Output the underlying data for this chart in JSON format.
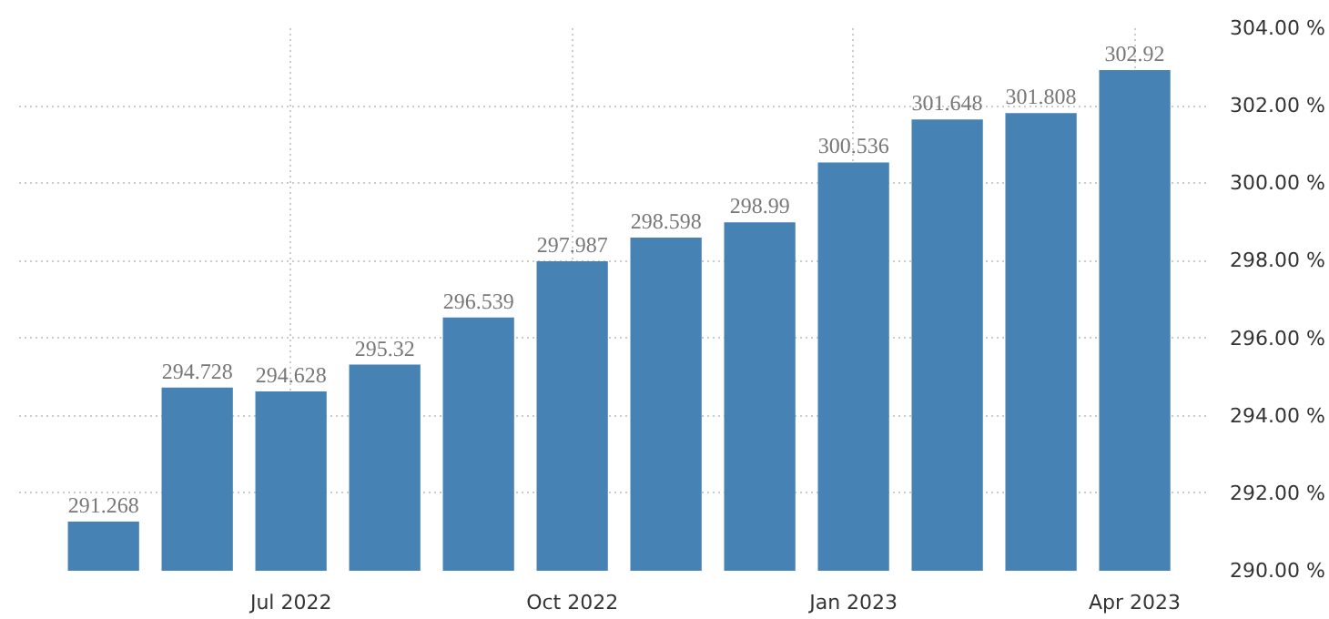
{
  "chart_data": {
    "type": "bar",
    "categories": [
      null,
      null,
      "Jul 2022",
      null,
      null,
      "Oct 2022",
      null,
      null,
      "Jan 2023",
      null,
      null,
      "Apr 2023"
    ],
    "values": [
      291.268,
      294.728,
      294.628,
      295.32,
      296.539,
      297.987,
      298.598,
      298.99,
      300.536,
      301.648,
      301.808,
      302.92
    ],
    "color": "#4682b4",
    "ylim": [
      290,
      304
    ],
    "yticks": [
      {
        "value": 290,
        "label": "290.00 %"
      },
      {
        "value": 292,
        "label": "292.00 %"
      },
      {
        "value": 294,
        "label": "294.00 %"
      },
      {
        "value": 296,
        "label": "296.00 %"
      },
      {
        "value": 298,
        "label": "298.00 %"
      },
      {
        "value": 300,
        "label": "300.00 %"
      },
      {
        "value": 302,
        "label": "302.00 %"
      },
      {
        "value": 304,
        "label": "304.00 %"
      }
    ],
    "data_labels": true,
    "grid": true
  }
}
